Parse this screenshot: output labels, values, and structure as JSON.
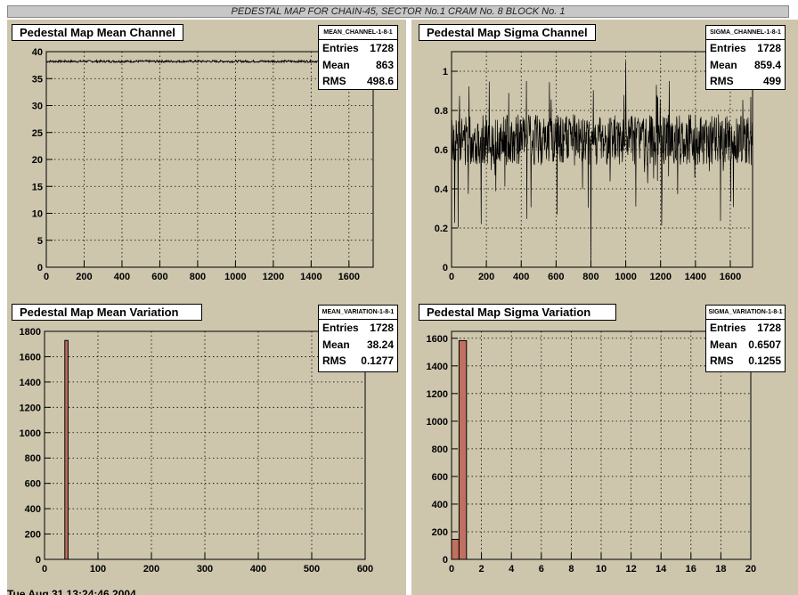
{
  "page_title": "PEDESTAL MAP FOR CHAIN-45, SECTOR No.1 CRAM No. 8 BLOCK No. 1",
  "footer_text": "Tue Aug 31 13:24:46 2004",
  "panels": [
    {
      "title": "Pedestal Map Mean Channel",
      "stats": {
        "name": "MEAN_CHANNEL-1-8-1",
        "entries_label": "Entries",
        "entries": "1728",
        "mean_label": "Mean",
        "mean": "863",
        "rms_label": "RMS",
        "rms": "498.6"
      }
    },
    {
      "title": "Pedestal Map Sigma Channel",
      "stats": {
        "name": "SIGMA_CHANNEL-1-8-1",
        "entries_label": "Entries",
        "entries": "1728",
        "mean_label": "Mean",
        "mean": "859.4",
        "rms_label": "RMS",
        "rms": "499"
      }
    },
    {
      "title": "Pedestal Map Mean Variation",
      "stats": {
        "name": "MEAN_VARIATION-1-8-1",
        "entries_label": "Entries",
        "entries": "1728",
        "mean_label": "Mean",
        "mean": "38.24",
        "rms_label": "RMS",
        "rms": "0.1277"
      }
    },
    {
      "title": "Pedestal Map Sigma Variation",
      "stats": {
        "name": "SIGMA_VARIATION-1-8-1",
        "entries_label": "Entries",
        "entries": "1728",
        "mean_label": "Mean",
        "mean": "0.6507",
        "rms_label": "RMS",
        "rms": "0.1255"
      }
    }
  ],
  "colors": {
    "pad_background": "#cdc6ad",
    "histogram_fill": "#c07060",
    "line": "#000000"
  },
  "chart_data": [
    {
      "type": "line",
      "title": "Pedestal Map Mean Channel",
      "xlim": [
        0,
        1728
      ],
      "ylim": [
        0,
        40
      ],
      "xticks": [
        0,
        200,
        400,
        600,
        800,
        1000,
        1200,
        1400,
        1600
      ],
      "yticks": [
        0,
        5,
        10,
        15,
        20,
        25,
        30,
        35,
        40
      ],
      "grid": true,
      "series": [
        {
          "x_range": [
            0,
            1728
          ],
          "approx_level": 38.2,
          "spread": 0.4
        }
      ]
    },
    {
      "type": "line",
      "title": "Pedestal Map Sigma Channel",
      "xlim": [
        0,
        1728
      ],
      "ylim": [
        0,
        1.1
      ],
      "xticks": [
        0,
        200,
        400,
        600,
        800,
        1000,
        1200,
        1400,
        1600
      ],
      "yticks": [
        0,
        0.2,
        0.4,
        0.6,
        0.8,
        1
      ],
      "grid": true,
      "series": [
        {
          "x_range": [
            0,
            1728
          ],
          "approx_level": 0.65,
          "spread": 0.13,
          "notable_points": [
            [
              800,
              0
            ],
            [
              1655,
              0
            ],
            [
              1000,
              1.05
            ],
            [
              430,
              0.95
            ],
            [
              1250,
              0.95
            ]
          ]
        }
      ]
    },
    {
      "type": "bar",
      "title": "Pedestal Map Mean Variation",
      "xlim": [
        0,
        600
      ],
      "ylim": [
        0,
        1800
      ],
      "xticks": [
        0,
        100,
        200,
        300,
        400,
        500,
        600
      ],
      "yticks": [
        0,
        200,
        400,
        600,
        800,
        1000,
        1200,
        1400,
        1600,
        1800
      ],
      "grid": true,
      "bins": [
        {
          "x0": 38,
          "x1": 44,
          "value": 1728
        }
      ]
    },
    {
      "type": "bar",
      "title": "Pedestal Map Sigma Variation",
      "xlim": [
        0,
        20
      ],
      "ylim": [
        0,
        1650
      ],
      "xticks": [
        0,
        2,
        4,
        6,
        8,
        10,
        12,
        14,
        16,
        18,
        20
      ],
      "yticks": [
        0,
        200,
        400,
        600,
        800,
        1000,
        1200,
        1400,
        1600
      ],
      "grid": true,
      "bins": [
        {
          "x0": 0,
          "x1": 0.5,
          "value": 145
        },
        {
          "x0": 0.5,
          "x1": 1.0,
          "value": 1583
        }
      ]
    }
  ]
}
